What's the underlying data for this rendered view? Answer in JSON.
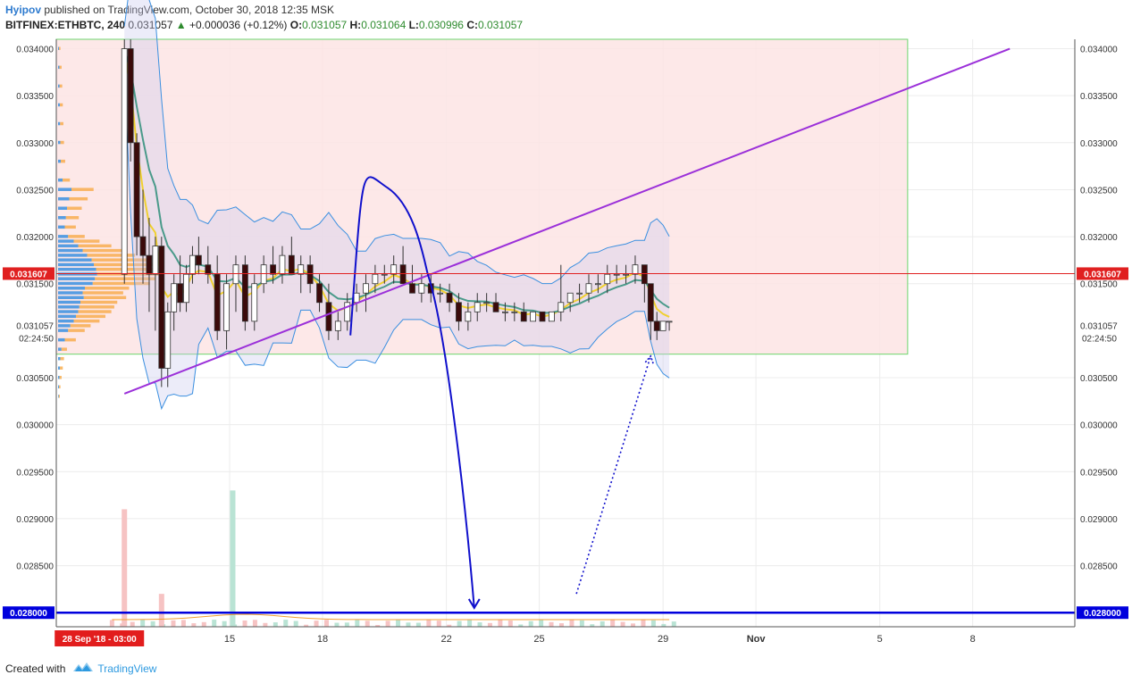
{
  "header": {
    "author": "Hyipov",
    "published": "published on TradingView.com, October 30, 2018 12:35 MSK",
    "symbol": "BITFINEX:ETHBTC, 240",
    "last": "0.031057",
    "change_arrow": "▲",
    "change": "+0.000036 (+0.12%)",
    "o_label": "O:",
    "o_value": "0.031057",
    "h_label": "H:",
    "h_value": "0.031064",
    "l_label": "L:",
    "l_value": "0.030996",
    "c_label": "C:",
    "c_value": "0.031057"
  },
  "footer": {
    "created_with": "Created with",
    "brand": "TradingView"
  },
  "colors": {
    "up": "#26a69a",
    "down": "#3b0a0a",
    "zone": "#fde4e4",
    "trend": "#9b30d9",
    "path": "#1010cc",
    "support": "#0000dd",
    "bb": "#3a8fe0",
    "ema_fast": "#f0d030",
    "ema_slow": "#4a9a8a"
  },
  "chart_data": {
    "type": "candlestick",
    "symbol": "BITFINEX:ETHBTC",
    "interval": "240",
    "ylim": [
      0.02785,
      0.0341
    ],
    "y_ticks": [
      "0.034000",
      "0.033500",
      "0.033000",
      "0.032500",
      "0.032000",
      "0.031500",
      "0.031057",
      "0.030500",
      "0.030000",
      "0.029500",
      "0.029000",
      "0.028500",
      "0.028000"
    ],
    "y_tick_values": [
      0.034,
      0.0335,
      0.033,
      0.0325,
      0.032,
      0.0315,
      0.031057,
      0.0305,
      0.03,
      0.0295,
      0.029,
      0.0285,
      0.028
    ],
    "x_labels": [
      "15",
      "18",
      "22",
      "25",
      "29",
      "Nov",
      "5",
      "8"
    ],
    "x_label_positions": [
      15,
      18,
      22,
      25,
      29,
      32,
      36,
      39
    ],
    "x_range": [
      9.4,
      42.3
    ],
    "crosshair_date": "28 Sep '18 - 03:00",
    "price_lines": [
      {
        "label": "0.031607",
        "value": 0.031607,
        "color": "#e02020"
      },
      {
        "label": "0.028000",
        "value": 0.028,
        "color": "#0000dd"
      }
    ],
    "current_price_label": "0.031057",
    "countdown": "02:24:50",
    "zone": {
      "x_start": 9.4,
      "x_end": 36.9,
      "y_top": 0.0341,
      "y_bottom": 0.03075
    },
    "trendline": {
      "x1": 11.6,
      "y1": 0.03033,
      "x2": 40.2,
      "y2": 0.034
    },
    "projection_path": {
      "points": [
        [
          18.9,
          0.03095
        ],
        [
          20.1,
          0.03252
        ],
        [
          21.4,
          0.0316
        ],
        [
          22.9,
          0.02805
        ]
      ]
    },
    "dotted_arrow": {
      "x1": 26.2,
      "y1": 0.0282,
      "x2": 28.6,
      "y2": 0.03073
    },
    "candles": [
      {
        "d": 11.6,
        "o": 0.0316,
        "h": 0.0341,
        "l": 0.0315,
        "c": 0.034
      },
      {
        "d": 11.8,
        "o": 0.034,
        "h": 0.0341,
        "l": 0.0328,
        "c": 0.033
      },
      {
        "d": 12.0,
        "o": 0.033,
        "h": 0.0331,
        "l": 0.0318,
        "c": 0.032
      },
      {
        "d": 12.2,
        "o": 0.032,
        "h": 0.0325,
        "l": 0.0315,
        "c": 0.0318
      },
      {
        "d": 12.4,
        "o": 0.0318,
        "h": 0.0322,
        "l": 0.0312,
        "c": 0.0316
      },
      {
        "d": 12.6,
        "o": 0.0316,
        "h": 0.032,
        "l": 0.031,
        "c": 0.0319
      },
      {
        "d": 12.8,
        "o": 0.0319,
        "h": 0.032,
        "l": 0.0304,
        "c": 0.0306
      },
      {
        "d": 13.0,
        "o": 0.0306,
        "h": 0.0313,
        "l": 0.0304,
        "c": 0.0312
      },
      {
        "d": 13.2,
        "o": 0.0312,
        "h": 0.0316,
        "l": 0.031,
        "c": 0.0315
      },
      {
        "d": 13.4,
        "o": 0.0315,
        "h": 0.0318,
        "l": 0.0312,
        "c": 0.0313
      },
      {
        "d": 13.6,
        "o": 0.0313,
        "h": 0.0317,
        "l": 0.0312,
        "c": 0.0316
      },
      {
        "d": 13.8,
        "o": 0.0316,
        "h": 0.0319,
        "l": 0.0315,
        "c": 0.0318
      },
      {
        "d": 14.0,
        "o": 0.0318,
        "h": 0.032,
        "l": 0.0316,
        "c": 0.0317
      },
      {
        "d": 14.3,
        "o": 0.0317,
        "h": 0.0319,
        "l": 0.0315,
        "c": 0.0316
      },
      {
        "d": 14.6,
        "o": 0.0316,
        "h": 0.0318,
        "l": 0.0309,
        "c": 0.031
      },
      {
        "d": 14.9,
        "o": 0.031,
        "h": 0.0316,
        "l": 0.0308,
        "c": 0.0315
      },
      {
        "d": 15.2,
        "o": 0.0315,
        "h": 0.0318,
        "l": 0.0312,
        "c": 0.0317
      },
      {
        "d": 15.5,
        "o": 0.0317,
        "h": 0.0318,
        "l": 0.031,
        "c": 0.0311
      },
      {
        "d": 15.8,
        "o": 0.0311,
        "h": 0.0316,
        "l": 0.031,
        "c": 0.0315
      },
      {
        "d": 16.1,
        "o": 0.0315,
        "h": 0.0318,
        "l": 0.0314,
        "c": 0.0317
      },
      {
        "d": 16.4,
        "o": 0.0317,
        "h": 0.0319,
        "l": 0.0315,
        "c": 0.0316
      },
      {
        "d": 16.7,
        "o": 0.0316,
        "h": 0.0319,
        "l": 0.0315,
        "c": 0.0318
      },
      {
        "d": 17.0,
        "o": 0.0318,
        "h": 0.032,
        "l": 0.0316,
        "c": 0.0316
      },
      {
        "d": 17.3,
        "o": 0.0316,
        "h": 0.0318,
        "l": 0.0314,
        "c": 0.0317
      },
      {
        "d": 17.6,
        "o": 0.0317,
        "h": 0.0318,
        "l": 0.0314,
        "c": 0.0315
      },
      {
        "d": 17.9,
        "o": 0.0315,
        "h": 0.0316,
        "l": 0.0312,
        "c": 0.0313
      },
      {
        "d": 18.2,
        "o": 0.0313,
        "h": 0.0315,
        "l": 0.0309,
        "c": 0.031
      },
      {
        "d": 18.5,
        "o": 0.031,
        "h": 0.0312,
        "l": 0.0309,
        "c": 0.0311
      },
      {
        "d": 18.8,
        "o": 0.0311,
        "h": 0.0314,
        "l": 0.031,
        "c": 0.0313
      },
      {
        "d": 19.1,
        "o": 0.0313,
        "h": 0.0315,
        "l": 0.0312,
        "c": 0.0314
      },
      {
        "d": 19.4,
        "o": 0.0314,
        "h": 0.0316,
        "l": 0.0312,
        "c": 0.0315
      },
      {
        "d": 19.7,
        "o": 0.0315,
        "h": 0.0317,
        "l": 0.0314,
        "c": 0.0316
      },
      {
        "d": 20.0,
        "o": 0.0316,
        "h": 0.0317,
        "l": 0.0315,
        "c": 0.0316
      },
      {
        "d": 20.3,
        "o": 0.0316,
        "h": 0.0318,
        "l": 0.0315,
        "c": 0.0317
      },
      {
        "d": 20.6,
        "o": 0.0317,
        "h": 0.0319,
        "l": 0.0315,
        "c": 0.0315
      },
      {
        "d": 20.9,
        "o": 0.0315,
        "h": 0.0317,
        "l": 0.0314,
        "c": 0.0314
      },
      {
        "d": 21.2,
        "o": 0.0314,
        "h": 0.0316,
        "l": 0.0313,
        "c": 0.0315
      },
      {
        "d": 21.5,
        "o": 0.0315,
        "h": 0.0316,
        "l": 0.0313,
        "c": 0.0314
      },
      {
        "d": 21.8,
        "o": 0.0314,
        "h": 0.0315,
        "l": 0.0313,
        "c": 0.0314
      },
      {
        "d": 22.1,
        "o": 0.0314,
        "h": 0.0315,
        "l": 0.0312,
        "c": 0.0313
      },
      {
        "d": 22.4,
        "o": 0.0313,
        "h": 0.0314,
        "l": 0.031,
        "c": 0.0311
      },
      {
        "d": 22.7,
        "o": 0.0311,
        "h": 0.0313,
        "l": 0.031,
        "c": 0.0312
      },
      {
        "d": 23.0,
        "o": 0.0312,
        "h": 0.0314,
        "l": 0.0311,
        "c": 0.0313
      },
      {
        "d": 23.3,
        "o": 0.0313,
        "h": 0.0314,
        "l": 0.0312,
        "c": 0.0313
      },
      {
        "d": 23.6,
        "o": 0.0313,
        "h": 0.0314,
        "l": 0.0312,
        "c": 0.0312
      },
      {
        "d": 23.9,
        "o": 0.0312,
        "h": 0.0313,
        "l": 0.0311,
        "c": 0.0312
      },
      {
        "d": 24.2,
        "o": 0.0312,
        "h": 0.0313,
        "l": 0.0311,
        "c": 0.0312
      },
      {
        "d": 24.5,
        "o": 0.0312,
        "h": 0.0313,
        "l": 0.0311,
        "c": 0.0311
      },
      {
        "d": 24.8,
        "o": 0.0311,
        "h": 0.0312,
        "l": 0.0311,
        "c": 0.0312
      },
      {
        "d": 25.1,
        "o": 0.0312,
        "h": 0.0312,
        "l": 0.0311,
        "c": 0.0311
      },
      {
        "d": 25.4,
        "o": 0.0311,
        "h": 0.0312,
        "l": 0.0311,
        "c": 0.0312
      },
      {
        "d": 25.7,
        "o": 0.0312,
        "h": 0.0317,
        "l": 0.0311,
        "c": 0.0313
      },
      {
        "d": 26.0,
        "o": 0.0313,
        "h": 0.0314,
        "l": 0.0312,
        "c": 0.0314
      },
      {
        "d": 26.3,
        "o": 0.0314,
        "h": 0.0315,
        "l": 0.0313,
        "c": 0.0314
      },
      {
        "d": 26.6,
        "o": 0.0314,
        "h": 0.0316,
        "l": 0.0313,
        "c": 0.0315
      },
      {
        "d": 26.9,
        "o": 0.0315,
        "h": 0.0316,
        "l": 0.0314,
        "c": 0.0315
      },
      {
        "d": 27.2,
        "o": 0.0315,
        "h": 0.0317,
        "l": 0.0314,
        "c": 0.0316
      },
      {
        "d": 27.5,
        "o": 0.0316,
        "h": 0.0317,
        "l": 0.0315,
        "c": 0.0316
      },
      {
        "d": 27.8,
        "o": 0.0316,
        "h": 0.0317,
        "l": 0.0315,
        "c": 0.0316
      },
      {
        "d": 28.1,
        "o": 0.0316,
        "h": 0.0318,
        "l": 0.0315,
        "c": 0.0317
      },
      {
        "d": 28.4,
        "o": 0.0317,
        "h": 0.0317,
        "l": 0.0313,
        "c": 0.0315
      },
      {
        "d": 28.6,
        "o": 0.0315,
        "h": 0.0315,
        "l": 0.0309,
        "c": 0.0311
      },
      {
        "d": 28.8,
        "o": 0.0311,
        "h": 0.0312,
        "l": 0.0309,
        "c": 0.031
      },
      {
        "d": 29.0,
        "o": 0.031,
        "h": 0.0311,
        "l": 0.031,
        "c": 0.0311
      },
      {
        "d": 29.2,
        "o": 0.0311,
        "h": 0.0311,
        "l": 0.031,
        "c": 0.0311
      }
    ],
    "volume_spikes": [
      {
        "d": 11.6,
        "v": 0.0291,
        "up": false
      },
      {
        "d": 12.8,
        "v": 0.0282,
        "up": false
      },
      {
        "d": 15.1,
        "v": 0.0293,
        "up": true
      }
    ]
  }
}
